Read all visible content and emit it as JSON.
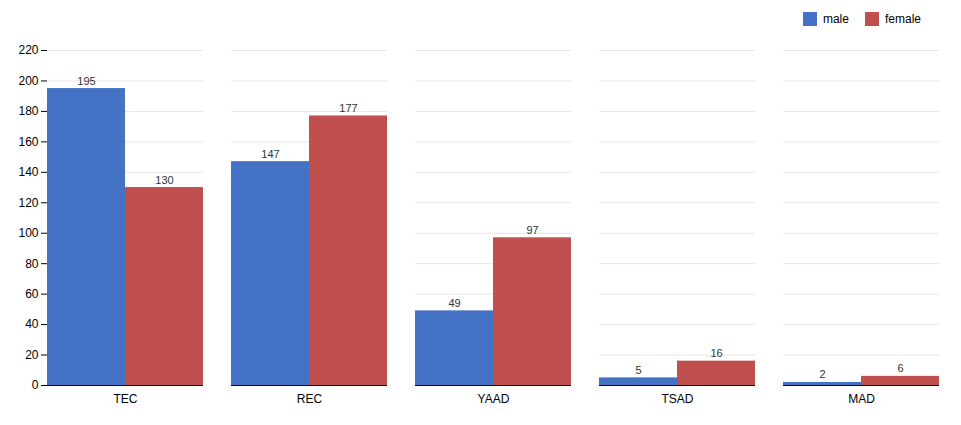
{
  "chart_data": {
    "type": "bar",
    "categories": [
      "TEC",
      "REC",
      "YAAD",
      "TSAD",
      "MAD"
    ],
    "series": [
      {
        "name": "male",
        "color": "#4472C4",
        "values": [
          195,
          147,
          49,
          5,
          2
        ]
      },
      {
        "name": "female",
        "color": "#C0504D",
        "values": [
          130,
          177,
          97,
          16,
          6
        ]
      }
    ],
    "ylim": [
      0,
      220
    ],
    "yticks": [
      0,
      20,
      40,
      60,
      80,
      100,
      120,
      140,
      160,
      180,
      200,
      220
    ],
    "grid": true,
    "legend": "upper right",
    "data_labels": true
  }
}
